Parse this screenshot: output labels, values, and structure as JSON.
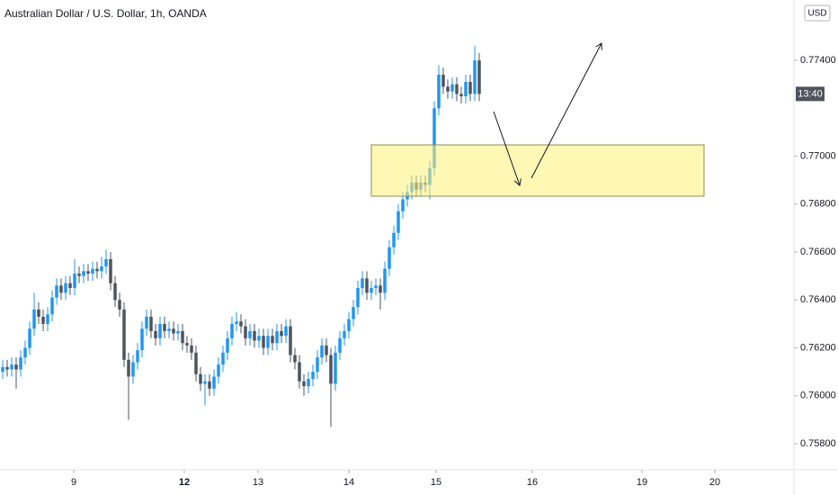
{
  "chart_data": {
    "type": "candlestick",
    "title": "Australian Dollar / U.S. Dollar, 1h, OANDA",
    "currency": "USD",
    "last_time": "13:40",
    "up_color": "#2196f3",
    "down_color": "#50535e",
    "xlim": [
      -0.6,
      176
    ],
    "ylim": [
      0.75691,
      0.77652
    ],
    "xticks": [
      {
        "value": 15.8,
        "label": "9"
      },
      {
        "value": 40.4,
        "label": "12"
      },
      {
        "value": 56.8,
        "label": "13"
      },
      {
        "value": 77,
        "label": "14"
      },
      {
        "value": 96.4,
        "label": "15"
      },
      {
        "value": 117.8,
        "label": "16"
      },
      {
        "value": 142.2,
        "label": "19"
      },
      {
        "value": 158.4,
        "label": "20"
      }
    ],
    "yticks": [
      {
        "value": 0.774,
        "label": "0.77400"
      },
      {
        "value": 0.77,
        "label": "0.77000"
      },
      {
        "value": 0.768,
        "label": "0.76800"
      },
      {
        "value": 0.766,
        "label": "0.76600"
      },
      {
        "value": 0.764,
        "label": "0.76400"
      },
      {
        "value": 0.762,
        "label": "0.76200"
      },
      {
        "value": 0.76,
        "label": "0.76000"
      },
      {
        "value": 0.758,
        "label": "0.75800"
      }
    ],
    "x": [
      0,
      1,
      2,
      3,
      4,
      5,
      6,
      7,
      8,
      9,
      10,
      11,
      12,
      13,
      14,
      15,
      16,
      17,
      18,
      19,
      20,
      21,
      22,
      23,
      24,
      25,
      26,
      27,
      28,
      29,
      30,
      31,
      32,
      33,
      34,
      35,
      36,
      37,
      38,
      39,
      40,
      41,
      42,
      43,
      44,
      45,
      46,
      47,
      48,
      49,
      50,
      51,
      52,
      53,
      54,
      55,
      56,
      57,
      58,
      59,
      60,
      61,
      62,
      63,
      64,
      65,
      66,
      67,
      68,
      69,
      70,
      71,
      72,
      73,
      74,
      75,
      76,
      77,
      78,
      79,
      80,
      81,
      82,
      83,
      84,
      85,
      86,
      87,
      88,
      89,
      90,
      91,
      92,
      93,
      94,
      95,
      96,
      97,
      98,
      99,
      100,
      101,
      102,
      103,
      104,
      105,
      106
    ],
    "ohlc": [
      [
        0.761,
        0.7615,
        0.7607,
        0.7612
      ],
      [
        0.7612,
        0.7615,
        0.7608,
        0.7611
      ],
      [
        0.7611,
        0.7616,
        0.7608,
        0.7613
      ],
      [
        0.7613,
        0.7616,
        0.7603,
        0.7611
      ],
      [
        0.7611,
        0.7619,
        0.7608,
        0.7616
      ],
      [
        0.7616,
        0.7623,
        0.7613,
        0.762
      ],
      [
        0.762,
        0.7631,
        0.7617,
        0.7628
      ],
      [
        0.7628,
        0.7643,
        0.7625,
        0.7636
      ],
      [
        0.7636,
        0.7639,
        0.763,
        0.7633
      ],
      [
        0.7633,
        0.7636,
        0.7627,
        0.763
      ],
      [
        0.763,
        0.7637,
        0.7627,
        0.7634
      ],
      [
        0.7634,
        0.7644,
        0.7631,
        0.7641
      ],
      [
        0.7641,
        0.7649,
        0.7638,
        0.7646
      ],
      [
        0.7646,
        0.7649,
        0.764,
        0.7643
      ],
      [
        0.7643,
        0.765,
        0.764,
        0.7647
      ],
      [
        0.7647,
        0.765,
        0.7642,
        0.7645
      ],
      [
        0.7645,
        0.7657,
        0.7642,
        0.7651
      ],
      [
        0.7651,
        0.7654,
        0.7647,
        0.765
      ],
      [
        0.765,
        0.7655,
        0.7647,
        0.7652
      ],
      [
        0.7652,
        0.7655,
        0.7648,
        0.7651
      ],
      [
        0.7651,
        0.7656,
        0.7648,
        0.7653
      ],
      [
        0.7653,
        0.7656,
        0.7649,
        0.7652
      ],
      [
        0.7652,
        0.7658,
        0.7649,
        0.7654
      ],
      [
        0.7654,
        0.7661,
        0.7651,
        0.7657
      ],
      [
        0.7657,
        0.766,
        0.7644,
        0.7647
      ],
      [
        0.7647,
        0.765,
        0.7637,
        0.764
      ],
      [
        0.764,
        0.7643,
        0.7633,
        0.7636
      ],
      [
        0.7636,
        0.7639,
        0.7612,
        0.7615
      ],
      [
        0.7615,
        0.7618,
        0.759,
        0.7608
      ],
      [
        0.7608,
        0.7617,
        0.7605,
        0.7614
      ],
      [
        0.7614,
        0.7622,
        0.7611,
        0.7619
      ],
      [
        0.7619,
        0.7631,
        0.7616,
        0.7628
      ],
      [
        0.7628,
        0.7636,
        0.7625,
        0.7633
      ],
      [
        0.7633,
        0.7636,
        0.7624,
        0.7627
      ],
      [
        0.7627,
        0.763,
        0.7621,
        0.7624
      ],
      [
        0.7624,
        0.7633,
        0.7621,
        0.763
      ],
      [
        0.763,
        0.7633,
        0.7624,
        0.7627
      ],
      [
        0.7627,
        0.7631,
        0.7624,
        0.7628
      ],
      [
        0.7628,
        0.7631,
        0.7623,
        0.7626
      ],
      [
        0.7626,
        0.763,
        0.7623,
        0.7627
      ],
      [
        0.7627,
        0.763,
        0.7619,
        0.7622
      ],
      [
        0.7622,
        0.7625,
        0.7618,
        0.7621
      ],
      [
        0.7621,
        0.7624,
        0.7615,
        0.7618
      ],
      [
        0.7618,
        0.7621,
        0.7606,
        0.7609
      ],
      [
        0.7609,
        0.7612,
        0.7602,
        0.7605
      ],
      [
        0.7605,
        0.7609,
        0.7596,
        0.7606
      ],
      [
        0.7606,
        0.7609,
        0.76,
        0.7603
      ],
      [
        0.7603,
        0.7611,
        0.76,
        0.7608
      ],
      [
        0.7608,
        0.7616,
        0.7605,
        0.7613
      ],
      [
        0.7613,
        0.7621,
        0.761,
        0.7618
      ],
      [
        0.7618,
        0.7627,
        0.7615,
        0.7624
      ],
      [
        0.7624,
        0.7633,
        0.7621,
        0.763
      ],
      [
        0.763,
        0.7635,
        0.7627,
        0.7631
      ],
      [
        0.7631,
        0.7634,
        0.7626,
        0.7629
      ],
      [
        0.7629,
        0.7632,
        0.7621,
        0.7624
      ],
      [
        0.7624,
        0.763,
        0.7621,
        0.7627
      ],
      [
        0.7627,
        0.763,
        0.762,
        0.7623
      ],
      [
        0.7623,
        0.7628,
        0.762,
        0.7625
      ],
      [
        0.7625,
        0.7628,
        0.7617,
        0.762
      ],
      [
        0.762,
        0.7628,
        0.7617,
        0.7625
      ],
      [
        0.7625,
        0.7628,
        0.7619,
        0.7622
      ],
      [
        0.7622,
        0.763,
        0.7619,
        0.7627
      ],
      [
        0.7627,
        0.763,
        0.7622,
        0.7625
      ],
      [
        0.7625,
        0.7632,
        0.7622,
        0.7629
      ],
      [
        0.7629,
        0.7632,
        0.7614,
        0.7617
      ],
      [
        0.7617,
        0.762,
        0.7611,
        0.7614
      ],
      [
        0.7614,
        0.7617,
        0.7603,
        0.7606
      ],
      [
        0.7606,
        0.7609,
        0.76,
        0.7604
      ],
      [
        0.7604,
        0.761,
        0.7601,
        0.7607
      ],
      [
        0.7607,
        0.7613,
        0.7604,
        0.761
      ],
      [
        0.761,
        0.7619,
        0.7607,
        0.7616
      ],
      [
        0.7616,
        0.7624,
        0.7613,
        0.7621
      ],
      [
        0.7621,
        0.7624,
        0.7614,
        0.7617
      ],
      [
        0.7617,
        0.762,
        0.7587,
        0.7605
      ],
      [
        0.7605,
        0.7621,
        0.7602,
        0.7618
      ],
      [
        0.7618,
        0.7627,
        0.7615,
        0.7624
      ],
      [
        0.7624,
        0.763,
        0.7621,
        0.7627
      ],
      [
        0.7627,
        0.7635,
        0.7624,
        0.7632
      ],
      [
        0.7632,
        0.764,
        0.7629,
        0.7637
      ],
      [
        0.7637,
        0.7648,
        0.7634,
        0.7645
      ],
      [
        0.7645,
        0.7652,
        0.7642,
        0.7649
      ],
      [
        0.7649,
        0.7652,
        0.764,
        0.7643
      ],
      [
        0.7643,
        0.7648,
        0.764,
        0.7645
      ],
      [
        0.7645,
        0.7649,
        0.7642,
        0.7646
      ],
      [
        0.7646,
        0.7649,
        0.7636,
        0.7643
      ],
      [
        0.7643,
        0.7656,
        0.764,
        0.7653
      ],
      [
        0.7653,
        0.7665,
        0.765,
        0.7662
      ],
      [
        0.7662,
        0.7671,
        0.7659,
        0.7668
      ],
      [
        0.7668,
        0.768,
        0.7665,
        0.7677
      ],
      [
        0.7677,
        0.7685,
        0.7674,
        0.7682
      ],
      [
        0.7682,
        0.7688,
        0.7679,
        0.7685
      ],
      [
        0.7685,
        0.7692,
        0.7682,
        0.7689
      ],
      [
        0.7689,
        0.7692,
        0.7683,
        0.7686
      ],
      [
        0.7686,
        0.7692,
        0.7683,
        0.7689
      ],
      [
        0.7689,
        0.7692,
        0.7685,
        0.7688
      ],
      [
        0.7688,
        0.7698,
        0.7682,
        0.7695
      ],
      [
        0.7695,
        0.7723,
        0.7692,
        0.772
      ],
      [
        0.772,
        0.7738,
        0.7717,
        0.7734
      ],
      [
        0.7734,
        0.7737,
        0.7726,
        0.7729
      ],
      [
        0.7729,
        0.7732,
        0.7724,
        0.7727
      ],
      [
        0.7727,
        0.7733,
        0.7724,
        0.773
      ],
      [
        0.773,
        0.7733,
        0.7723,
        0.7726
      ],
      [
        0.7726,
        0.7729,
        0.7722,
        0.7725
      ],
      [
        0.7725,
        0.7734,
        0.7722,
        0.7731
      ],
      [
        0.7731,
        0.7734,
        0.7723,
        0.7726
      ],
      [
        0.7726,
        0.7746,
        0.7723,
        0.774
      ],
      [
        0.774,
        0.7743,
        0.7723,
        0.7726
      ]
    ]
  }
}
